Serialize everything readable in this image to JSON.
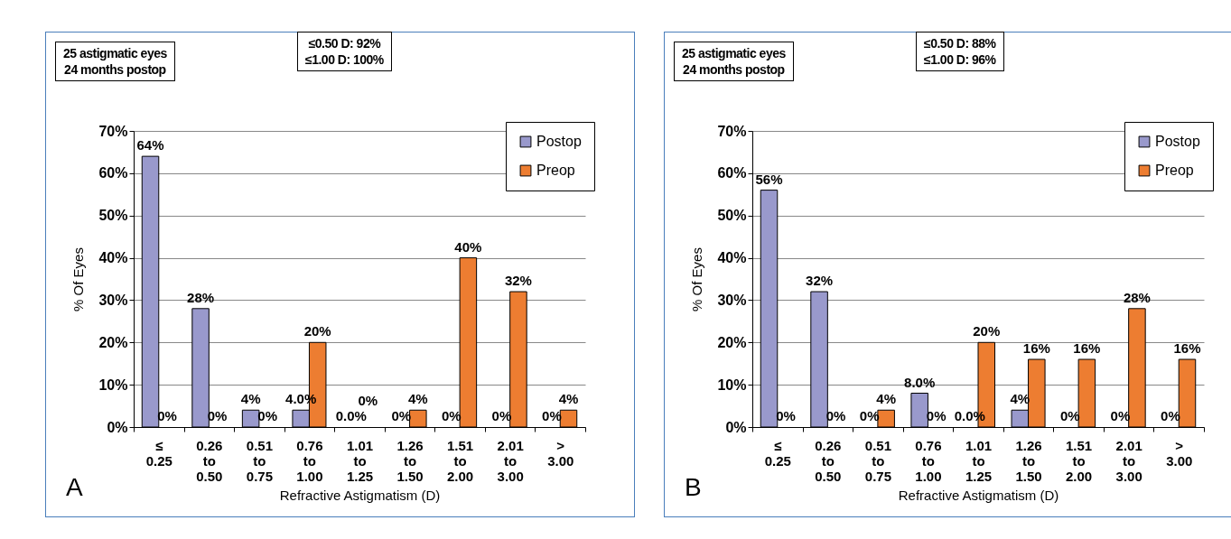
{
  "chart_data": [
    {
      "type": "bar",
      "annotations": [
        "25 astigmatic eyes\n24 months postop",
        "≤0.50 D: 92%\n≤1.00 D: 100%",
        "A"
      ],
      "xlabel": "Refractive Astigmatism (D)",
      "ylabel": "% Of Eyes",
      "categories": [
        "≤ 0.25",
        "0.26 to 0.50",
        "0.51 to 0.75",
        "0.76 to 1.00",
        "1.01 to 1.25",
        "1.26 to 1.50",
        "1.51 to 2.00",
        "2.01 to 3.00",
        "> 3.00"
      ],
      "series": [
        {
          "name": "Postop",
          "color": "#9999cc",
          "values": [
            64,
            28,
            4,
            4,
            0,
            0,
            0,
            0,
            0
          ],
          "value_labels": [
            "64%",
            "28%",
            "4%",
            "4.0%",
            "0.0%",
            "0%",
            "0%",
            "0%",
            "0%"
          ]
        },
        {
          "name": "Preop",
          "color": "#ed7d31",
          "values": [
            0,
            0,
            0,
            20,
            0,
            4,
            40,
            32,
            4
          ],
          "value_labels": [
            "0%",
            "0%",
            "0%",
            "20%",
            "0%",
            "4%",
            "40%",
            "32%",
            "4%"
          ]
        }
      ],
      "ylim": [
        0,
        70
      ],
      "yticks": [
        {
          "value": 0,
          "label": "0%"
        },
        {
          "value": 10,
          "label": "10%"
        },
        {
          "value": 20,
          "label": "20%"
        },
        {
          "value": 30,
          "label": "30%"
        },
        {
          "value": 40,
          "label": "40%"
        },
        {
          "value": 50,
          "label": "50%"
        },
        {
          "value": 60,
          "label": "60%"
        },
        {
          "value": 70,
          "label": "70%"
        }
      ],
      "grid": "y",
      "legend": "top right"
    },
    {
      "type": "bar",
      "annotations": [
        "25 astigmatic eyes\n24 months postop",
        "≤0.50 D: 88%\n≤1.00 D: 96%",
        "B"
      ],
      "xlabel": "Refractive Astigmatism (D)",
      "ylabel": "% Of Eyes",
      "categories": [
        "≤ 0.25",
        "0.26 to 0.50",
        "0.51 to 0.75",
        "0.76 to 1.00",
        "1.01 to 1.25",
        "1.26 to 1.50",
        "1.51 to 2.00",
        "2.01 to 3.00",
        "> 3.00"
      ],
      "series": [
        {
          "name": "Postop",
          "color": "#9999cc",
          "values": [
            56,
            32,
            0,
            8,
            0,
            4,
            0,
            0,
            0
          ],
          "value_labels": [
            "56%",
            "32%",
            "0%",
            "8.0%",
            "0.0%",
            "4%",
            "0%",
            "0%",
            "0%"
          ]
        },
        {
          "name": "Preop",
          "color": "#ed7d31",
          "values": [
            0,
            0,
            4,
            0,
            20,
            16,
            16,
            28,
            16
          ],
          "value_labels": [
            "0%",
            "0%",
            "4%",
            "0%",
            "20%",
            "16%",
            "16%",
            "28%",
            "16%"
          ]
        }
      ],
      "ylim": [
        0,
        70
      ],
      "yticks": [
        {
          "value": 0,
          "label": "0%"
        },
        {
          "value": 10,
          "label": "10%"
        },
        {
          "value": 20,
          "label": "20%"
        },
        {
          "value": 30,
          "label": "30%"
        },
        {
          "value": 40,
          "label": "40%"
        },
        {
          "value": 50,
          "label": "50%"
        },
        {
          "value": 60,
          "label": "60%"
        },
        {
          "value": 70,
          "label": "70%"
        }
      ],
      "grid": "y",
      "legend": "top right"
    }
  ]
}
